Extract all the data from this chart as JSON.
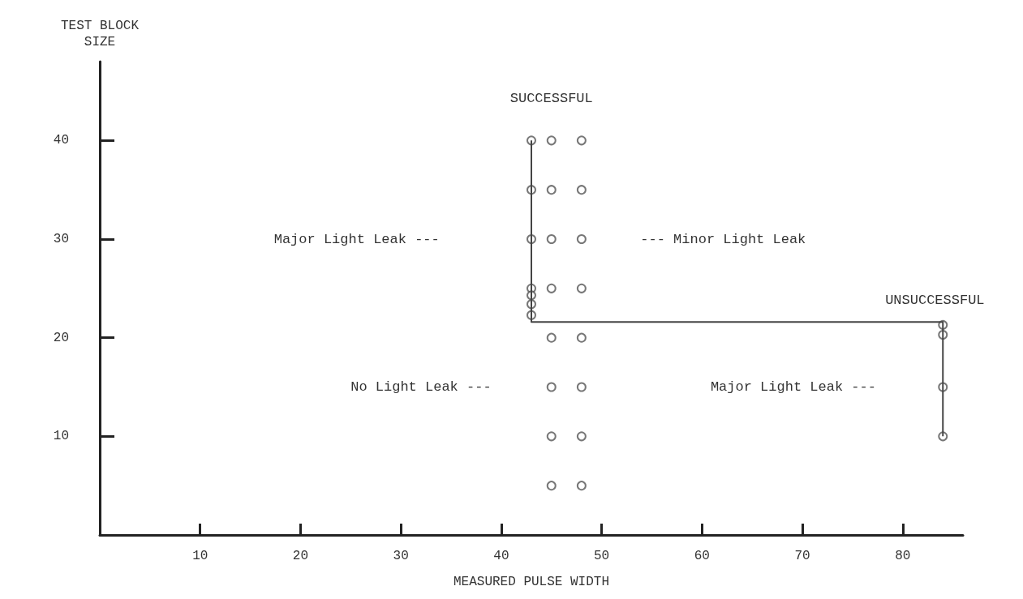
{
  "chart_data": {
    "type": "scatter",
    "xlabel": "MEASURED PULSE WIDTH",
    "ylabel": "TEST BLOCK\nSIZE",
    "xlim": [
      0,
      86
    ],
    "ylim": [
      0,
      48
    ],
    "xticks": [
      10,
      20,
      30,
      40,
      50,
      60,
      70,
      80
    ],
    "yticks": [
      10,
      20,
      30,
      40
    ],
    "grid": false,
    "marker": "circle",
    "series": [
      {
        "color": "#555555",
        "x": [
          43,
          43,
          43,
          43,
          43,
          43,
          43,
          45,
          45,
          45,
          45,
          45,
          45,
          45,
          45,
          48,
          48,
          48,
          48,
          48,
          48,
          48,
          48,
          84,
          84,
          84,
          84
        ],
        "values": [
          40,
          35,
          30,
          25,
          24.3,
          23.4,
          22.3,
          40,
          35,
          30,
          25,
          20,
          15,
          10,
          5,
          40,
          35,
          30,
          25,
          20,
          15,
          10,
          5,
          21.3,
          20.3,
          15,
          10
        ]
      },
      {
        "type": "line",
        "color": "#444444",
        "marker": "none",
        "x": [
          43,
          43,
          84,
          84
        ],
        "values": [
          40,
          21.6,
          21.6,
          10
        ]
      }
    ],
    "annotations": [
      "SUCCESSFUL",
      "UNSUCCESSFUL",
      "Major Light Leak ---",
      "--- Minor Light Leak",
      "No Light Leak ---",
      "Major Light Leak ---"
    ]
  }
}
